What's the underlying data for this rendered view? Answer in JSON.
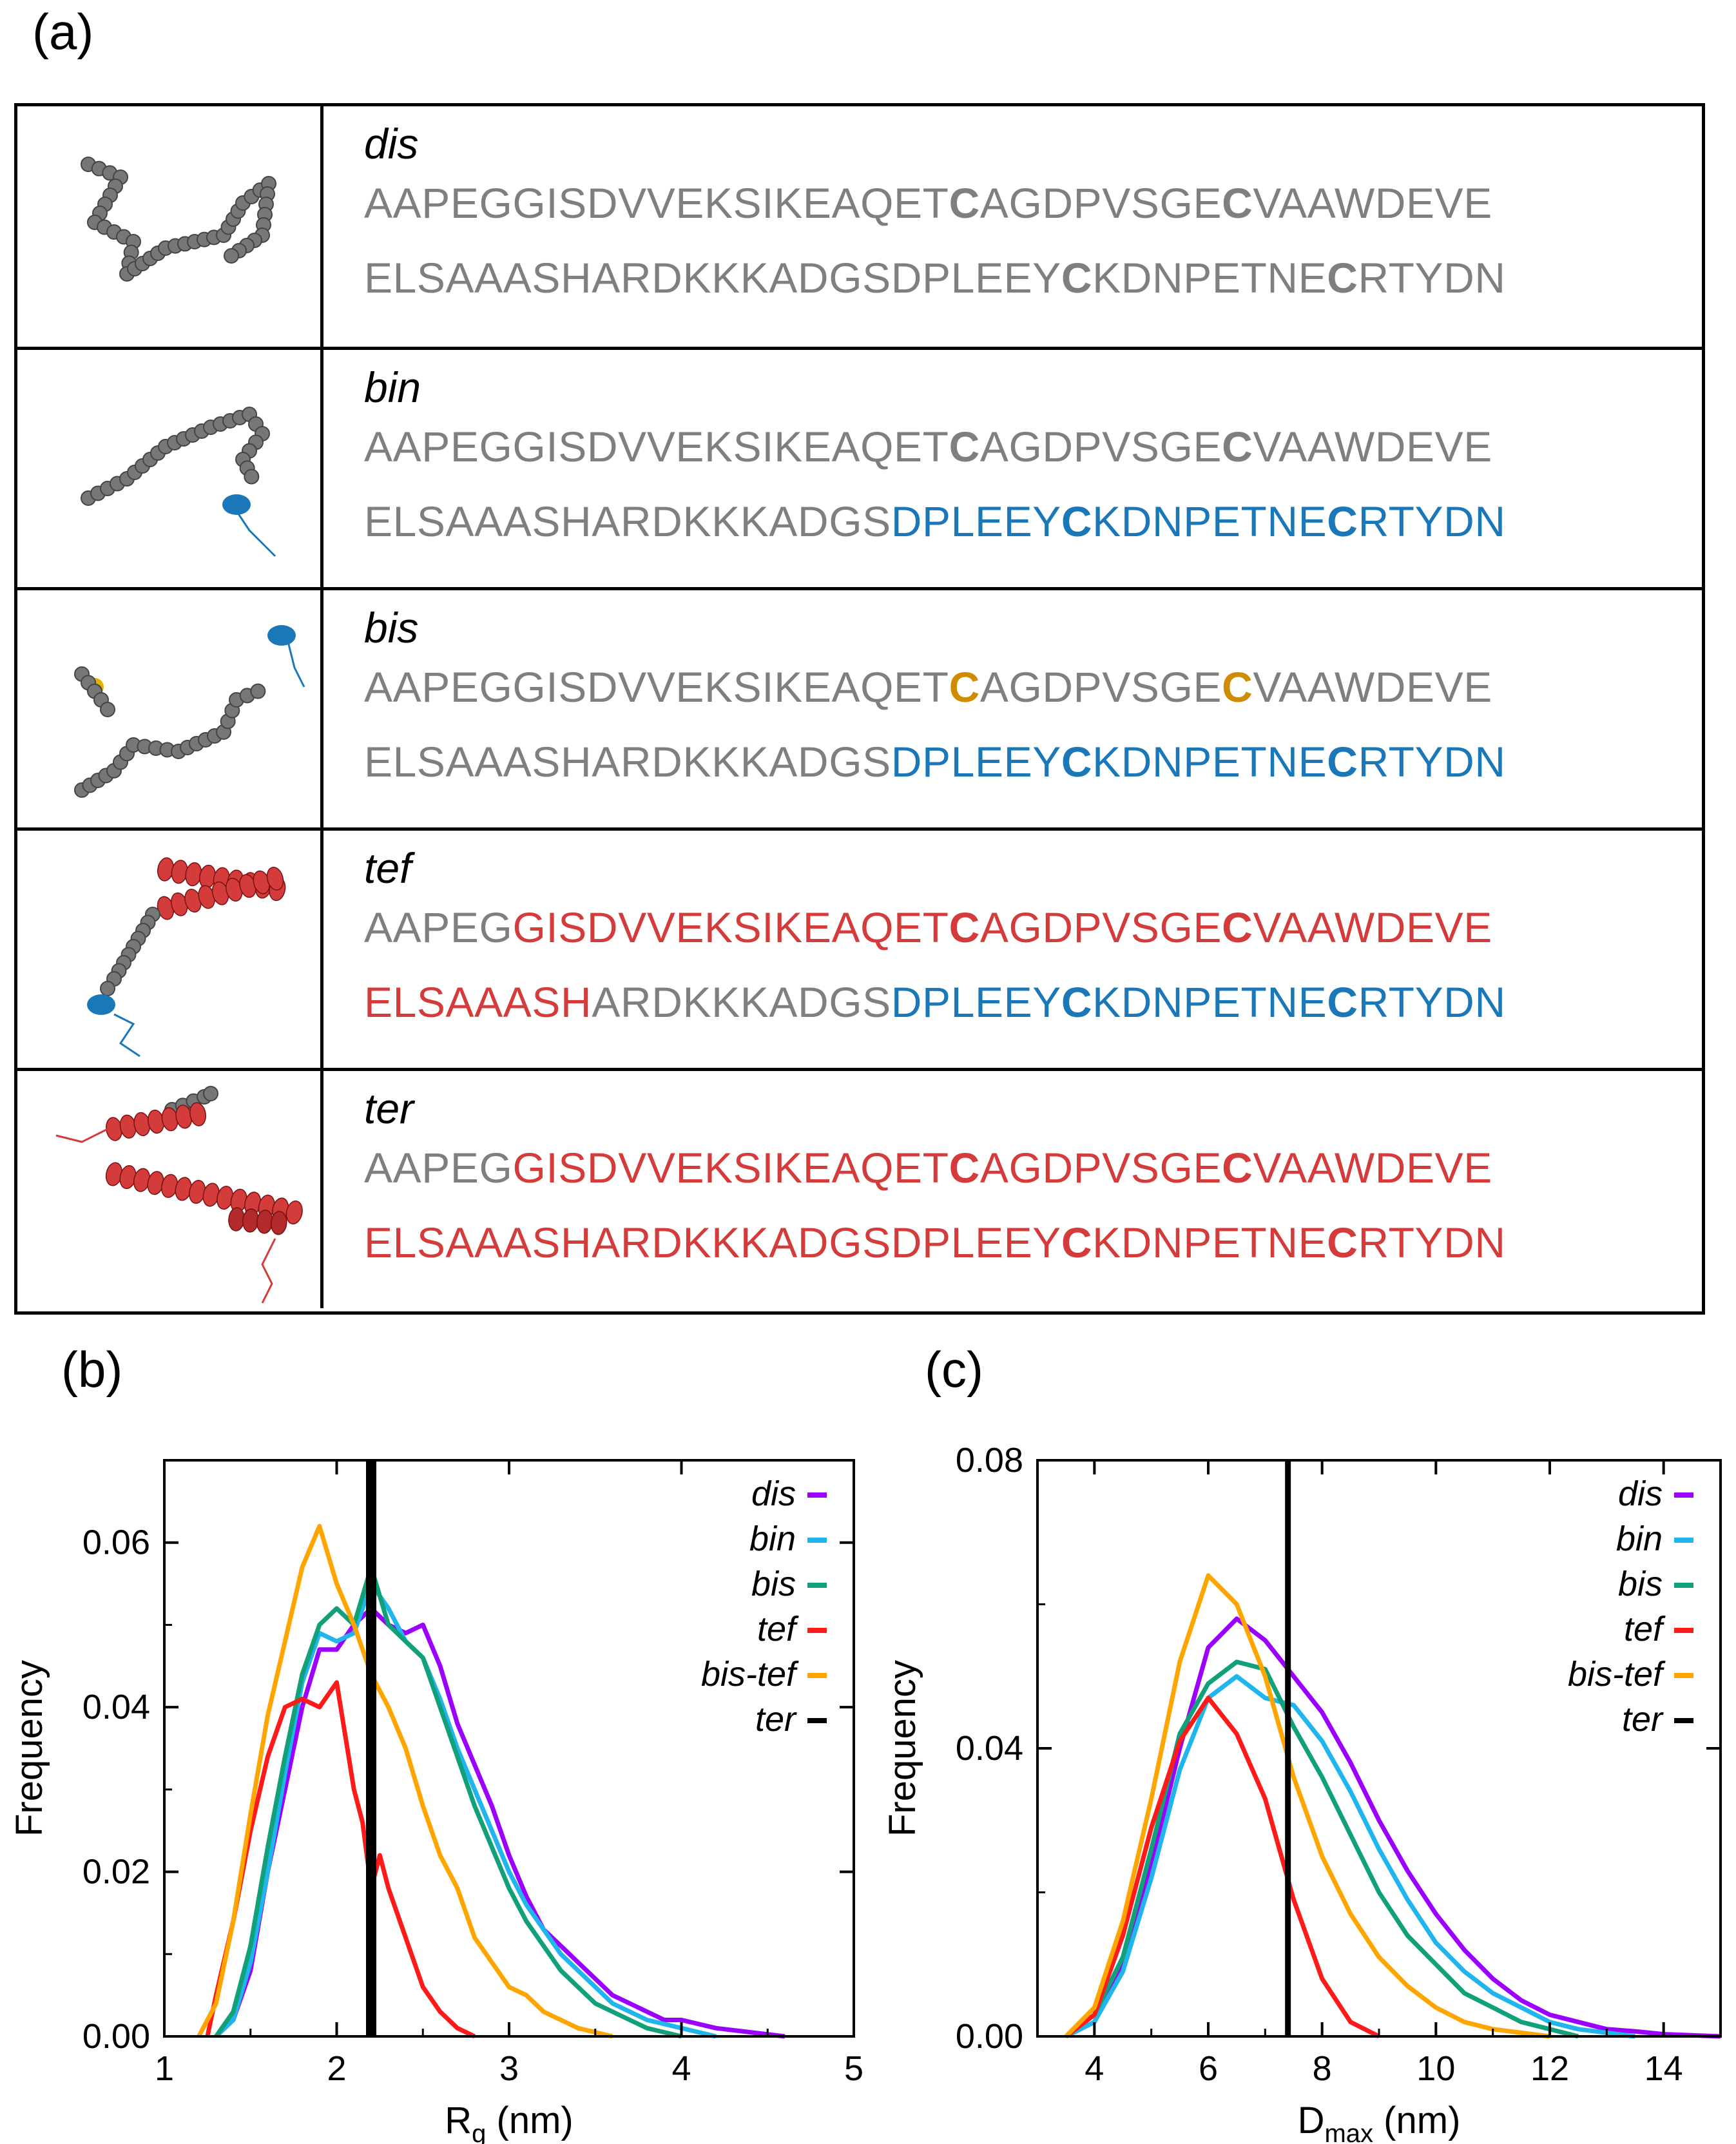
{
  "panel_labels": {
    "a": "(a)",
    "b": "(b)",
    "c": "(c)"
  },
  "colors": {
    "gray": "#7f7f7f",
    "blue": "#1a77b8",
    "red": "#d43c3c",
    "orange": "#cf8c00",
    "dis": "#9b00ff",
    "bin": "#21b5ee",
    "bis": "#10a07a",
    "tef": "#ff1a1a",
    "bis-tef": "#ffa500",
    "ter": "#000000"
  },
  "sequence_table": {
    "rows": [
      {
        "name": "dis",
        "line1": [
          {
            "t": "AAPEGGISDVVEKSIKEAQET",
            "c": "gray"
          },
          {
            "t": "C",
            "c": "gray",
            "b": true
          },
          {
            "t": "AGDPVSGE",
            "c": "gray"
          },
          {
            "t": "C",
            "c": "gray",
            "b": true
          },
          {
            "t": "VAAWDEVE",
            "c": "gray"
          }
        ],
        "line2": [
          {
            "t": "ELSAAASHARDKKKADGSDPLEEY",
            "c": "gray"
          },
          {
            "t": "C",
            "c": "gray",
            "b": true
          },
          {
            "t": "KDNPETNE",
            "c": "gray"
          },
          {
            "t": "C",
            "c": "gray",
            "b": true
          },
          {
            "t": "RTYDN",
            "c": "gray"
          }
        ]
      },
      {
        "name": "bin",
        "line1": [
          {
            "t": "AAPEGGISDVVEKSIKEAQET",
            "c": "gray"
          },
          {
            "t": "C",
            "c": "gray",
            "b": true
          },
          {
            "t": "AGDPVSGE",
            "c": "gray"
          },
          {
            "t": "C",
            "c": "gray",
            "b": true
          },
          {
            "t": "VAAWDEVE",
            "c": "gray"
          }
        ],
        "line2": [
          {
            "t": "ELSAAASHARDKKKADGS",
            "c": "gray"
          },
          {
            "t": "DPLEEY",
            "c": "blue"
          },
          {
            "t": "C",
            "c": "blue",
            "b": true
          },
          {
            "t": "KDNPETNE",
            "c": "blue"
          },
          {
            "t": "C",
            "c": "blue",
            "b": true
          },
          {
            "t": "RTYDN",
            "c": "blue"
          }
        ]
      },
      {
        "name": "bis",
        "line1": [
          {
            "t": "AAPEGGISDVVEKSIKEAQET",
            "c": "gray"
          },
          {
            "t": "C",
            "c": "orange",
            "b": true
          },
          {
            "t": "AGDPVSGE",
            "c": "gray"
          },
          {
            "t": "C",
            "c": "orange",
            "b": true
          },
          {
            "t": "VAAWDEVE",
            "c": "gray"
          }
        ],
        "line2": [
          {
            "t": "ELSAAASHARDKKKADGS",
            "c": "gray"
          },
          {
            "t": "DPLEEY",
            "c": "blue"
          },
          {
            "t": "C",
            "c": "blue",
            "b": true
          },
          {
            "t": "KDNPETNE",
            "c": "blue"
          },
          {
            "t": "C",
            "c": "blue",
            "b": true
          },
          {
            "t": "RTYDN",
            "c": "blue"
          }
        ]
      },
      {
        "name": "tef",
        "line1": [
          {
            "t": "AAPEG",
            "c": "gray"
          },
          {
            "t": "GISDVVEKSIKEAQET",
            "c": "red"
          },
          {
            "t": "C",
            "c": "red",
            "b": true
          },
          {
            "t": "AGDPVSGE",
            "c": "red"
          },
          {
            "t": "C",
            "c": "red",
            "b": true
          },
          {
            "t": "VAAWDEVE",
            "c": "red"
          }
        ],
        "line2": [
          {
            "t": "ELSAAASH",
            "c": "red"
          },
          {
            "t": "ARDKKKADGS",
            "c": "gray"
          },
          {
            "t": "DPLEEY",
            "c": "blue"
          },
          {
            "t": "C",
            "c": "blue",
            "b": true
          },
          {
            "t": "KDNPETNE",
            "c": "blue"
          },
          {
            "t": "C",
            "c": "blue",
            "b": true
          },
          {
            "t": "RTYDN",
            "c": "blue"
          }
        ]
      },
      {
        "name": "ter",
        "line1": [
          {
            "t": "AAPEG",
            "c": "gray"
          },
          {
            "t": "GISDVVEKSIKEAQET",
            "c": "red"
          },
          {
            "t": "C",
            "c": "red",
            "b": true
          },
          {
            "t": "AGDPVSGE",
            "c": "red"
          },
          {
            "t": "C",
            "c": "red",
            "b": true
          },
          {
            "t": "VAAWDEVE",
            "c": "red"
          }
        ],
        "line2": [
          {
            "t": "ELSAAASHARDKKKADGSDPLEEY",
            "c": "red"
          },
          {
            "t": "C",
            "c": "red",
            "b": true
          },
          {
            "t": "KDNPETNE",
            "c": "red"
          },
          {
            "t": "C",
            "c": "red",
            "b": true
          },
          {
            "t": "RTYDN",
            "c": "red"
          }
        ]
      }
    ]
  },
  "chart_data": [
    {
      "type": "line",
      "panel": "(b)",
      "xlabel": "R",
      "xlabel_sub": "g",
      "xlabel_unit": " (nm)",
      "ylabel": "Frequency",
      "xlim": [
        1,
        5
      ],
      "ylim": [
        0,
        0.07
      ],
      "xticks": [
        1,
        2,
        3,
        4,
        5
      ],
      "xtick_labels": [
        "1",
        "2",
        "3",
        "4",
        "5"
      ],
      "yticks": [
        0,
        0.02,
        0.04,
        0.06
      ],
      "ytick_labels": [
        "0.00",
        "0.02",
        "0.04",
        "0.06"
      ],
      "legend_position": "top-right",
      "vline": {
        "x": 2.2,
        "name": "ter"
      },
      "series": [
        {
          "name": "dis",
          "color_key": "dis",
          "x": [
            1.3,
            1.4,
            1.5,
            1.6,
            1.7,
            1.8,
            1.9,
            2.0,
            2.1,
            2.2,
            2.3,
            2.4,
            2.5,
            2.6,
            2.7,
            2.8,
            2.9,
            3.0,
            3.1,
            3.2,
            3.3,
            3.4,
            3.5,
            3.6,
            3.7,
            3.8,
            3.9,
            4.0,
            4.2,
            4.4,
            4.6
          ],
          "y": [
            0.0,
            0.002,
            0.008,
            0.02,
            0.03,
            0.04,
            0.047,
            0.047,
            0.05,
            0.052,
            0.05,
            0.049,
            0.05,
            0.045,
            0.038,
            0.033,
            0.028,
            0.022,
            0.017,
            0.013,
            0.011,
            0.009,
            0.007,
            0.005,
            0.004,
            0.003,
            0.002,
            0.002,
            0.001,
            0.0005,
            0.0
          ]
        },
        {
          "name": "bin",
          "color_key": "bin",
          "x": [
            1.3,
            1.4,
            1.5,
            1.6,
            1.7,
            1.8,
            1.9,
            2.0,
            2.1,
            2.2,
            2.3,
            2.4,
            2.5,
            2.6,
            2.7,
            2.8,
            2.9,
            3.0,
            3.1,
            3.2,
            3.3,
            3.4,
            3.5,
            3.6,
            3.7,
            3.8,
            3.9,
            4.0,
            4.2
          ],
          "y": [
            0.0,
            0.002,
            0.009,
            0.02,
            0.032,
            0.043,
            0.049,
            0.048,
            0.049,
            0.055,
            0.052,
            0.048,
            0.046,
            0.041,
            0.035,
            0.03,
            0.025,
            0.02,
            0.016,
            0.013,
            0.01,
            0.008,
            0.006,
            0.004,
            0.003,
            0.002,
            0.0015,
            0.001,
            0.0
          ]
        },
        {
          "name": "bis",
          "color_key": "bis",
          "x": [
            1.3,
            1.4,
            1.5,
            1.6,
            1.7,
            1.8,
            1.9,
            2.0,
            2.1,
            2.2,
            2.3,
            2.4,
            2.5,
            2.6,
            2.7,
            2.8,
            2.9,
            3.0,
            3.1,
            3.2,
            3.3,
            3.4,
            3.5,
            3.6,
            3.7,
            3.8,
            4.0
          ],
          "y": [
            0.0,
            0.003,
            0.011,
            0.023,
            0.034,
            0.044,
            0.05,
            0.052,
            0.05,
            0.057,
            0.05,
            0.048,
            0.046,
            0.04,
            0.034,
            0.028,
            0.023,
            0.018,
            0.014,
            0.011,
            0.008,
            0.006,
            0.004,
            0.003,
            0.002,
            0.001,
            0.0
          ]
        },
        {
          "name": "tef",
          "color_key": "tef",
          "x": [
            1.25,
            1.3,
            1.4,
            1.5,
            1.6,
            1.7,
            1.8,
            1.9,
            2.0,
            2.1,
            2.15,
            2.2,
            2.25,
            2.3,
            2.4,
            2.5,
            2.6,
            2.7,
            2.8
          ],
          "y": [
            0.0,
            0.005,
            0.014,
            0.025,
            0.034,
            0.04,
            0.041,
            0.04,
            0.043,
            0.03,
            0.026,
            0.018,
            0.022,
            0.018,
            0.012,
            0.006,
            0.003,
            0.001,
            0.0
          ]
        },
        {
          "name": "bis-tef",
          "color_key": "bis-tef",
          "x": [
            1.2,
            1.3,
            1.4,
            1.5,
            1.6,
            1.7,
            1.8,
            1.9,
            2.0,
            2.1,
            2.2,
            2.3,
            2.4,
            2.5,
            2.6,
            2.7,
            2.8,
            2.9,
            3.0,
            3.1,
            3.2,
            3.3,
            3.4,
            3.5,
            3.6
          ],
          "y": [
            0.0,
            0.004,
            0.014,
            0.027,
            0.039,
            0.048,
            0.057,
            0.062,
            0.055,
            0.05,
            0.044,
            0.04,
            0.035,
            0.028,
            0.022,
            0.018,
            0.012,
            0.009,
            0.006,
            0.005,
            0.003,
            0.002,
            0.001,
            0.0005,
            0.0
          ]
        }
      ]
    },
    {
      "type": "line",
      "panel": "(c)",
      "xlabel": "D",
      "xlabel_sub": "max",
      "xlabel_unit": " (nm)",
      "ylabel": "Frequency",
      "xlim": [
        3,
        15
      ],
      "ylim": [
        0,
        0.08
      ],
      "xticks": [
        4,
        6,
        8,
        10,
        12,
        14
      ],
      "xtick_labels": [
        "4",
        "6",
        "8",
        "10",
        "12",
        "14"
      ],
      "yticks": [
        0,
        0.04,
        0.08
      ],
      "ytick_labels": [
        "0.00",
        "0.04",
        "0.08"
      ],
      "legend_position": "top-right",
      "vline": {
        "x": 7.4,
        "name": "ter"
      },
      "series": [
        {
          "name": "dis",
          "color_key": "dis",
          "x": [
            3.5,
            4.0,
            4.5,
            5.0,
            5.5,
            6.0,
            6.5,
            7.0,
            7.5,
            8.0,
            8.5,
            9.0,
            9.5,
            10.0,
            10.5,
            11.0,
            11.5,
            12.0,
            12.5,
            13.0,
            13.5,
            14.0,
            15.0
          ],
          "y": [
            0.0,
            0.002,
            0.01,
            0.024,
            0.04,
            0.054,
            0.058,
            0.055,
            0.05,
            0.045,
            0.038,
            0.03,
            0.023,
            0.017,
            0.012,
            0.008,
            0.005,
            0.003,
            0.002,
            0.001,
            0.0007,
            0.0003,
            0.0
          ]
        },
        {
          "name": "bin",
          "color_key": "bin",
          "x": [
            3.5,
            4.0,
            4.5,
            5.0,
            5.5,
            6.0,
            6.5,
            7.0,
            7.5,
            8.0,
            8.5,
            9.0,
            9.5,
            10.0,
            10.5,
            11.0,
            11.5,
            12.0,
            12.5,
            13.0,
            13.5
          ],
          "y": [
            0.0,
            0.002,
            0.009,
            0.022,
            0.037,
            0.047,
            0.05,
            0.047,
            0.046,
            0.041,
            0.034,
            0.026,
            0.019,
            0.013,
            0.009,
            0.006,
            0.004,
            0.002,
            0.001,
            0.0005,
            0.0
          ]
        },
        {
          "name": "bis",
          "color_key": "bis",
          "x": [
            3.5,
            4.0,
            4.5,
            5.0,
            5.5,
            6.0,
            6.5,
            7.0,
            7.5,
            8.0,
            8.5,
            9.0,
            9.5,
            10.0,
            10.5,
            11.0,
            11.5,
            12.0,
            12.5
          ],
          "y": [
            0.0,
            0.003,
            0.011,
            0.026,
            0.042,
            0.049,
            0.052,
            0.051,
            0.043,
            0.036,
            0.028,
            0.02,
            0.014,
            0.01,
            0.006,
            0.004,
            0.002,
            0.001,
            0.0
          ]
        },
        {
          "name": "tef",
          "color_key": "tef",
          "x": [
            3.5,
            4.0,
            4.5,
            5.0,
            5.5,
            6.0,
            6.5,
            7.0,
            7.5,
            8.0,
            8.5,
            9.0
          ],
          "y": [
            0.0,
            0.003,
            0.014,
            0.029,
            0.041,
            0.047,
            0.042,
            0.033,
            0.019,
            0.008,
            0.002,
            0.0
          ]
        },
        {
          "name": "bis-tef",
          "color_key": "bis-tef",
          "x": [
            3.5,
            4.0,
            4.5,
            5.0,
            5.5,
            6.0,
            6.5,
            7.0,
            7.5,
            8.0,
            8.5,
            9.0,
            9.5,
            10.0,
            10.5,
            11.0,
            11.5,
            12.0
          ],
          "y": [
            0.0,
            0.004,
            0.016,
            0.033,
            0.052,
            0.064,
            0.06,
            0.05,
            0.036,
            0.025,
            0.017,
            0.011,
            0.007,
            0.004,
            0.002,
            0.001,
            0.0005,
            0.0
          ]
        }
      ]
    }
  ],
  "legend": [
    {
      "name": "dis",
      "color_key": "dis"
    },
    {
      "name": "bin",
      "color_key": "bin"
    },
    {
      "name": "bis",
      "color_key": "bis"
    },
    {
      "name": "tef",
      "color_key": "tef"
    },
    {
      "name": "bis-tef",
      "color_key": "bis-tef"
    },
    {
      "name": "ter",
      "color_key": "ter"
    }
  ]
}
